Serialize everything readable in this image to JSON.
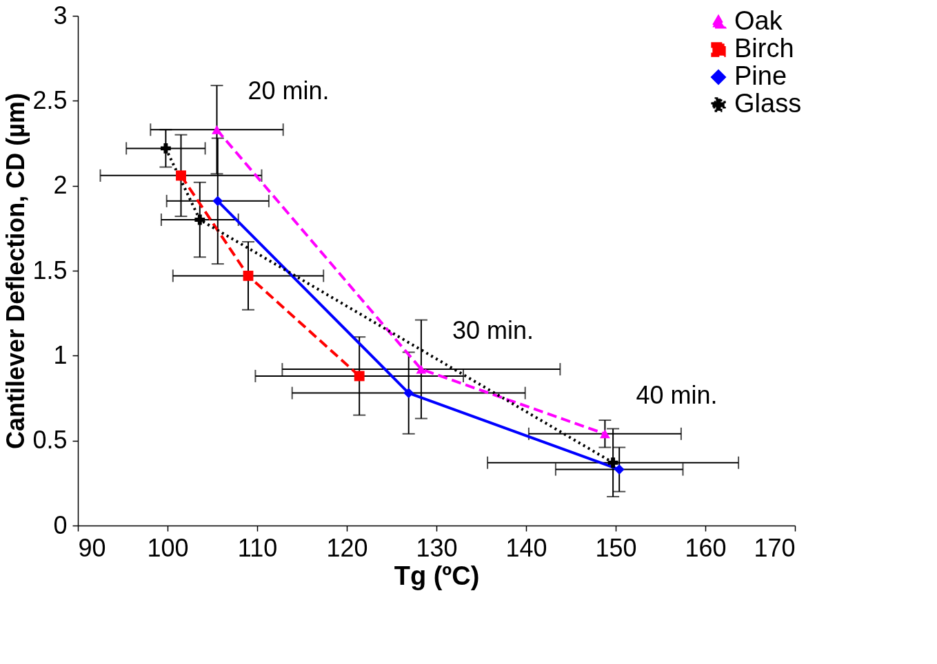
{
  "chart_data": {
    "type": "line",
    "xlabel": "Tg (ºC)",
    "ylabel": "Cantilever Deflection, CD (µm)",
    "xlim": [
      90,
      170
    ],
    "xticks": [
      90,
      100,
      110,
      120,
      130,
      140,
      150,
      160,
      170
    ],
    "ylim": [
      0,
      3
    ],
    "yticks": [
      0,
      0.5,
      1,
      1.5,
      2,
      2.5,
      3
    ],
    "grid": false,
    "legend": "top right",
    "series": [
      {
        "name": "Oak",
        "color": "#ff00ff",
        "marker": "triangle",
        "line_style": "dashed",
        "x": [
          105.5,
          128.3,
          148.8
        ],
        "values": [
          2.33,
          0.92,
          0.54
        ],
        "errors": [
          0.26,
          0.29,
          0.08
        ],
        "xerrors": [
          7.4,
          15.5,
          8.5
        ]
      },
      {
        "name": "Birch",
        "color": "#ff0000",
        "marker": "square",
        "line_style": "dashed",
        "x": [
          101.5,
          109.0,
          121.4
        ],
        "values": [
          2.06,
          1.47,
          0.88
        ],
        "errors": [
          0.24,
          0.2,
          0.23
        ],
        "xerrors": [
          9,
          8.4,
          11.6
        ]
      },
      {
        "name": "Pine",
        "color": "#0000ff",
        "marker": "diamond",
        "line_style": "solid",
        "x": [
          105.6,
          126.9,
          150.4
        ],
        "values": [
          1.91,
          0.78,
          0.33
        ],
        "errors": [
          0.37,
          0.24,
          0.13
        ],
        "xerrors": [
          5.7,
          13,
          7.1
        ]
      },
      {
        "name": "Glass",
        "color": "#000000",
        "marker": "cross",
        "line_style": "dotted",
        "x": [
          99.8,
          103.6,
          149.7
        ],
        "values": [
          2.22,
          1.8,
          0.37
        ],
        "errors": [
          0.11,
          0.22,
          0.2
        ],
        "xerrors": [
          4.4,
          4.3,
          14
        ]
      }
    ],
    "annotations": [
      "20 min.",
      "30 min.",
      "40 min."
    ]
  }
}
